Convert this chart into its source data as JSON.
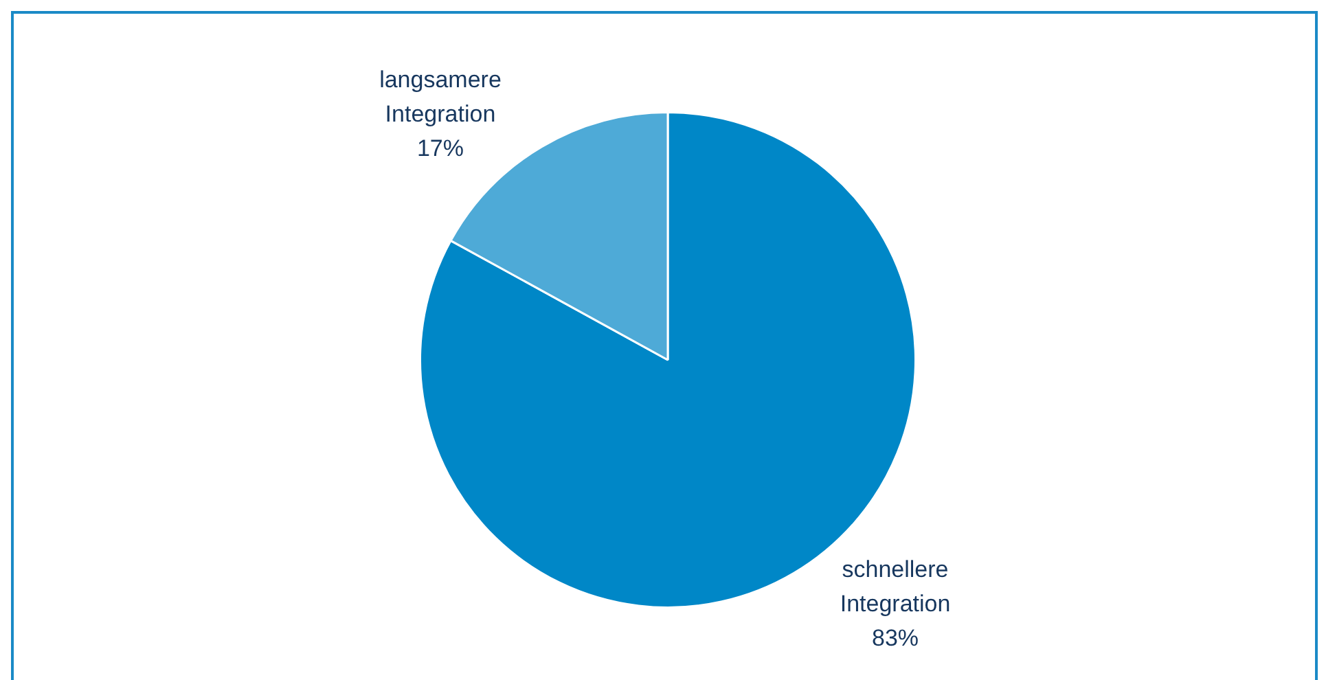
{
  "chart_data": {
    "type": "pie",
    "categories": [
      "schnellere Integration",
      "langsamere Integration"
    ],
    "values": [
      83,
      17
    ],
    "colors": [
      "#0087c7",
      "#4eaad7"
    ],
    "value_labels": [
      "83%",
      "17%"
    ],
    "legend": false
  }
}
